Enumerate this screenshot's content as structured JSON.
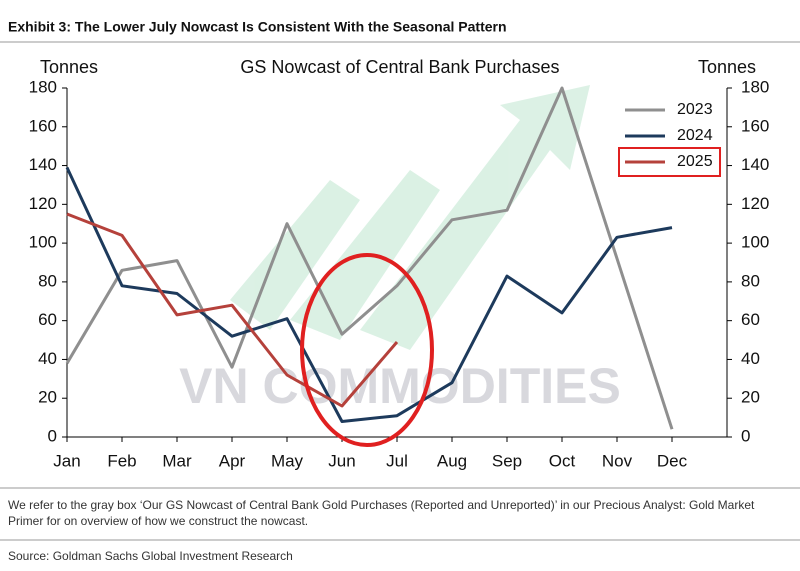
{
  "chart_data": {
    "type": "line",
    "exhibit_title": "Exhibit 3: The Lower July Nowcast Is Consistent With the Seasonal Pattern",
    "title": "GS Nowcast of Central Bank Purchases",
    "y_label": "Tonnes",
    "y2_label": "Tonnes",
    "categories": [
      "Jan",
      "Feb",
      "Mar",
      "Apr",
      "May",
      "Jun",
      "Jul",
      "Aug",
      "Sep",
      "Oct",
      "Nov",
      "Dec"
    ],
    "series": [
      {
        "name": "2023",
        "color": "#8f8f8f",
        "values": [
          38,
          86,
          91,
          36,
          110,
          53,
          78,
          112,
          117,
          180,
          92,
          4
        ]
      },
      {
        "name": "2024",
        "color": "#1d3a5c",
        "values": [
          139,
          78,
          74,
          52,
          61,
          8,
          11,
          28,
          83,
          64,
          103,
          108
        ]
      },
      {
        "name": "2025",
        "color": "#b5413b",
        "values": [
          115,
          104,
          63,
          68,
          32,
          16,
          49,
          null,
          null,
          null,
          null,
          null
        ]
      }
    ],
    "ylim": [
      0,
      180
    ],
    "yticks": [
      0,
      20,
      40,
      60,
      80,
      100,
      120,
      140,
      160,
      180
    ],
    "y2lim": [
      0,
      180
    ],
    "y2ticks": [
      0,
      20,
      40,
      60,
      80,
      100,
      120,
      140,
      160,
      180
    ],
    "legend": "upper right",
    "grid": false,
    "watermark": "VN COMMODITIES",
    "footnote": "We refer to the gray box ‘Our GS Nowcast of Central Bank Gold Purchases (Reported and Unreported)’ in our Precious Analyst: Gold Market Primer for on overview of how we construct the nowcast.",
    "source": "Source: Goldman Sachs Global Investment Research"
  }
}
